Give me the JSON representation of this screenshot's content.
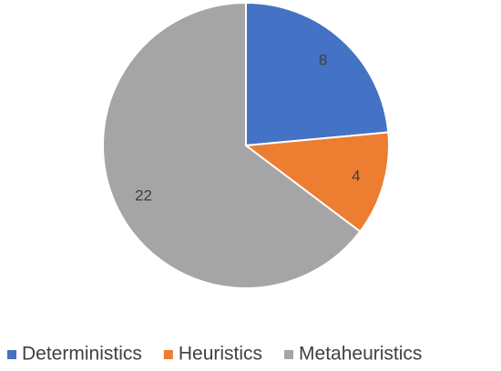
{
  "chart_data": {
    "type": "pie",
    "categories": [
      "Deterministics",
      "Heuristics",
      "Metaheuristics"
    ],
    "values": [
      8,
      4,
      22
    ],
    "colors": [
      "#4472c4",
      "#ed7d31",
      "#a5a5a5"
    ],
    "legend": "bottom"
  }
}
